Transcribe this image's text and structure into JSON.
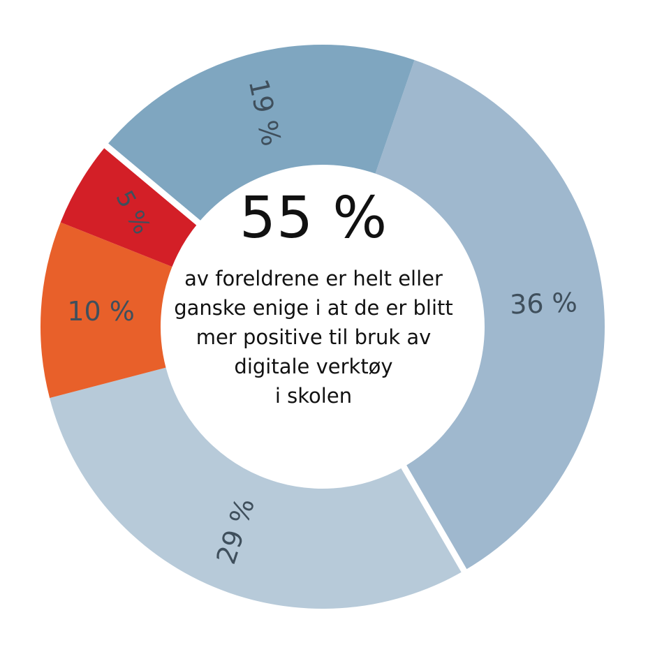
{
  "chart_data": {
    "type": "pie",
    "variant": "donut",
    "slices": [
      {
        "label": "36 %",
        "value": 36,
        "color": "#9fb8ce"
      },
      {
        "label": "29 %",
        "value": 29,
        "color": "#b7cad9"
      },
      {
        "label": "10 %",
        "value": 10,
        "color": "#e8602a"
      },
      {
        "label": "5 %",
        "value": 5,
        "color": "#d31f27"
      },
      {
        "label": "19 %",
        "value": 19,
        "color": "#7fa6c0"
      }
    ],
    "title": "55 %",
    "center_text": [
      "av foreldrene er helt eller",
      "ganske enige i at de er blitt",
      "mer positive til bruk av",
      "digitale verktøy",
      "i skolen"
    ]
  },
  "colors": {
    "label_text": "#3f4f5c"
  }
}
